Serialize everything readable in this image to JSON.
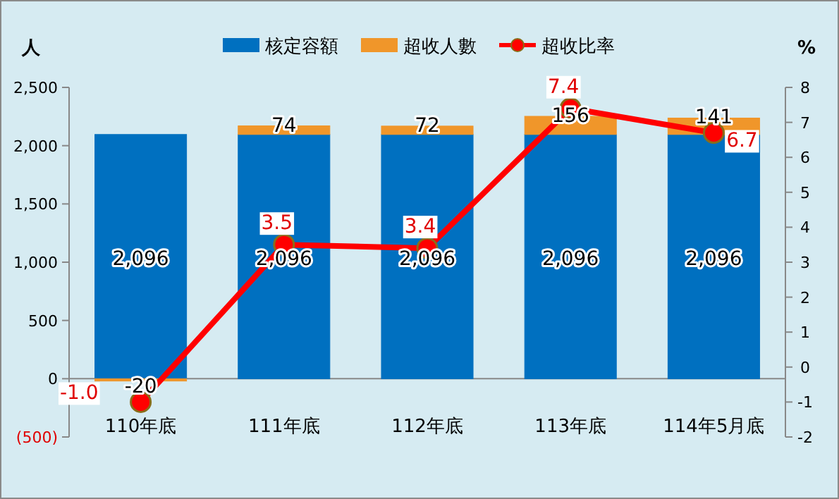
{
  "chart_data": {
    "type": "bar",
    "stacked": true,
    "ylabel": "人",
    "y2label": "%",
    "legend": "top",
    "marker": "circle",
    "categories": [
      "110年底",
      "111年底",
      "112年底",
      "113年底",
      "114年5月底"
    ],
    "ylim": [
      -500,
      2500
    ],
    "yticks": [
      {
        "value": -500,
        "label": "(500)"
      },
      0,
      500,
      {
        "value": 1000,
        "label": "1,000"
      },
      {
        "value": 1500,
        "label": "1,500"
      },
      {
        "value": 2000,
        "label": "2,000"
      },
      {
        "value": 2500,
        "label": "2,500"
      }
    ],
    "y2lim": [
      -2,
      8
    ],
    "y2ticks": [
      -2,
      -1,
      0,
      1,
      2,
      3,
      4,
      5,
      6,
      7,
      8
    ],
    "series": [
      {
        "name": "核定容額",
        "color": "#0070c0",
        "values": [
          2096,
          2096,
          2096,
          2096,
          2096
        ],
        "value_labels": [
          "2,096",
          "2,096",
          "2,096",
          "2,096",
          "2,096"
        ]
      },
      {
        "name": "超收人數",
        "color": "#f0962a",
        "values": [
          -20,
          74,
          72,
          156,
          141
        ],
        "value_labels": [
          "-20",
          "74",
          "72",
          "156",
          "141"
        ]
      },
      {
        "name": "超收比率",
        "type": "line",
        "axis": "y2",
        "color": "#ff0000",
        "values": [
          -1.0,
          3.5,
          3.4,
          7.4,
          6.7
        ],
        "value_labels": [
          "-1.0",
          "3.5",
          "3.4",
          "7.4",
          "6.7"
        ]
      }
    ]
  }
}
